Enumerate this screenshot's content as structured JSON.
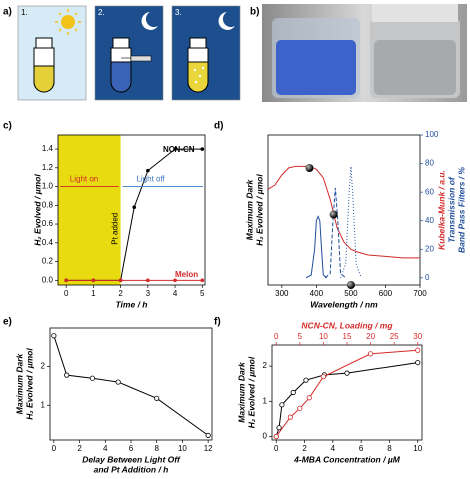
{
  "panel_a": {
    "label": "a)",
    "steps": [
      "1.",
      "2.",
      "3."
    ]
  },
  "panel_b": {
    "label": "b)"
  },
  "chart_data": [
    {
      "type": "line",
      "panel_label": "c)",
      "xlabel": [
        "Time / h"
      ],
      "ylabel": [
        "H₂ Evolved / µmol"
      ],
      "xlim": [
        -0.3,
        5.1
      ],
      "xticks": [
        0,
        1,
        2,
        3,
        4,
        5
      ],
      "ylim": [
        -0.05,
        1.55
      ],
      "yticks": [
        {
          "value": 0,
          "label": "0.0"
        },
        {
          "value": 0.2,
          "label": "0.2"
        },
        {
          "value": 0.4,
          "label": "0.4"
        },
        {
          "value": 0.6,
          "label": "0.6"
        },
        {
          "value": 0.8,
          "label": "0.8"
        },
        {
          "value": 1.0,
          "label": "1.0"
        },
        {
          "value": 1.2,
          "label": "1.2"
        },
        {
          "value": 1.4,
          "label": "1.4"
        }
      ],
      "shade_x": [
        -0.3,
        2
      ],
      "shade_color": "#e8dc10",
      "annotations": [
        "Light on",
        "Light off",
        "Pt added",
        "NCN-CN",
        "Melon"
      ],
      "series": [
        {
          "name": "NCN-CN",
          "color": "#000000",
          "marker": "filled",
          "x": [
            0,
            1,
            2,
            2.5,
            3,
            4,
            5
          ],
          "values": [
            0,
            0,
            0,
            0.78,
            1.17,
            1.4,
            1.4
          ]
        },
        {
          "name": "Melon",
          "color": "#d42a2a",
          "marker": "filled",
          "x": [
            0,
            1,
            2,
            3,
            4,
            5
          ],
          "values": [
            0,
            0,
            0,
            0,
            0,
            0
          ]
        }
      ]
    },
    {
      "type": "line",
      "panel_label": "d)",
      "xlabel": [
        "Wavelength / nm"
      ],
      "ylabel": [
        "Maximum Dark",
        "H₂ Evolved / µmol"
      ],
      "y2label": [
        "Kubelka-Munk / a.u.",
        "Transmission of",
        "Band Pass Filters / %"
      ],
      "y2label_colors": [
        "#d42a2a",
        "#1f4e9c",
        "#1f4e9c"
      ],
      "xlim": [
        260,
        700
      ],
      "xticks": [
        300,
        400,
        500,
        600,
        700
      ],
      "ylim": [
        0,
        1
      ],
      "y2lim": [
        -5,
        100
      ],
      "y2ticks": [
        0,
        20,
        40,
        60,
        80,
        100
      ],
      "y2color": "#1f4e9c",
      "series": [
        {
          "color": "#d42a2a",
          "axis": "y2",
          "x": [
            260,
            280,
            300,
            320,
            340,
            360,
            380,
            400,
            420,
            440,
            460,
            480,
            500,
            520,
            550,
            600,
            650,
            700
          ],
          "values": [
            62,
            65,
            72,
            77,
            78,
            78,
            78,
            76,
            70,
            55,
            35,
            25,
            20,
            18,
            16,
            15,
            14,
            14
          ]
        },
        {
          "color": "#1f4e9c",
          "axis": "y2",
          "x": [
            370,
            385,
            395,
            400,
            405,
            410,
            415,
            420,
            430
          ],
          "values": [
            0,
            2,
            20,
            40,
            43,
            40,
            20,
            2,
            0
          ]
        },
        {
          "color": "#1f4e9c",
          "axis": "y2",
          "dash": "4 2",
          "x": [
            425,
            440,
            448,
            455,
            462,
            470,
            485
          ],
          "values": [
            0,
            3,
            40,
            63,
            40,
            3,
            0
          ]
        },
        {
          "color": "#1f4e9c",
          "axis": "y2",
          "dash": "1 2",
          "x": [
            470,
            485,
            495,
            500,
            505,
            515,
            530
          ],
          "values": [
            0,
            10,
            60,
            78,
            60,
            10,
            0
          ]
        },
        {
          "color": "#111111",
          "marker": "sphere",
          "noline": true,
          "x": [
            380,
            450,
            500
          ],
          "values": [
            0.78,
            0.47,
            0
          ]
        }
      ]
    },
    {
      "type": "line",
      "panel_label": "e)",
      "xlabel": [
        "Delay Between Light Off",
        "and Pt Addition / h"
      ],
      "ylabel": [
        "Maximum Dark",
        "H₂ Evolved / µmol"
      ],
      "xlim": [
        -0.3,
        12.3
      ],
      "xticks": [
        0,
        2,
        4,
        6,
        8,
        10,
        12
      ],
      "ylim": [
        0.1,
        3.0
      ],
      "yticks": [
        1,
        2
      ],
      "series": [
        {
          "color": "#000000",
          "marker": "open",
          "x": [
            0,
            1,
            3,
            5,
            8,
            12
          ],
          "values": [
            2.8,
            1.78,
            1.7,
            1.6,
            1.18,
            0.22
          ]
        }
      ]
    },
    {
      "type": "line",
      "panel_label": "f)",
      "xlabel": [
        "4-MBA Concentration / µM"
      ],
      "x2label": [
        "NCN-CN, Loading / mg"
      ],
      "x2color": "#d42a2a",
      "ylabel": [
        "Maximum Dark",
        "H₂ Evolved / µmol"
      ],
      "xlim": [
        -0.3,
        10.3
      ],
      "xticks": [
        0,
        2,
        4,
        6,
        8,
        10
      ],
      "x2lim": [
        -0.9,
        30.9
      ],
      "x2ticks": [
        0,
        5,
        10,
        15,
        20,
        25,
        30
      ],
      "ylim": [
        -0.1,
        2.6
      ],
      "yticks": [
        0,
        1,
        2
      ],
      "series": [
        {
          "color": "#000000",
          "marker": "open",
          "x": [
            0,
            0.2,
            0.4,
            1.2,
            2.1,
            3.4,
            5,
            10
          ],
          "values": [
            0,
            0.25,
            0.9,
            1.25,
            1.6,
            1.75,
            1.8,
            2.1
          ]
        },
        {
          "color": "#d42a2a",
          "marker": "open",
          "xaxis": "x2",
          "x": [
            0,
            3,
            5,
            7,
            10,
            20,
            30
          ],
          "values": [
            0,
            0.55,
            0.8,
            1.1,
            1.7,
            2.35,
            2.45
          ]
        }
      ]
    }
  ]
}
